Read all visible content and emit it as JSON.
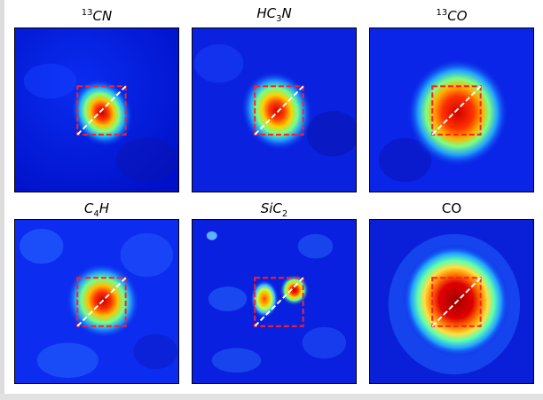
{
  "figure": {
    "panels": [
      {
        "id": "13cn",
        "title_sup": "13",
        "title_main": "CN",
        "title_sub": "",
        "title_italic": true,
        "blobs": [
          {
            "intensity": "peak",
            "shape": "compact"
          }
        ]
      },
      {
        "id": "hc3n",
        "title_sup": "",
        "title_main": "HC",
        "title_sub": "3",
        "title_tail": "N",
        "title_italic": true,
        "blobs": [
          {
            "intensity": "peak",
            "shape": "compact"
          }
        ]
      },
      {
        "id": "13co",
        "title_sup": "13",
        "title_main": "CO",
        "title_sub": "",
        "title_italic": true,
        "blobs": [
          {
            "intensity": "peak",
            "shape": "extended"
          }
        ]
      },
      {
        "id": "c4h",
        "title_sup": "",
        "title_main": "C",
        "title_sub": "4",
        "title_tail": "H",
        "title_italic": true,
        "blobs": [
          {
            "intensity": "peak",
            "shape": "compact"
          }
        ]
      },
      {
        "id": "sic2",
        "title_sup": "",
        "title_main": "SiC",
        "title_sub": "2",
        "title_italic": true,
        "blobs": [
          {
            "intensity": "peak",
            "shape": "double"
          }
        ]
      },
      {
        "id": "co",
        "title_sup": "",
        "title_main": "CO",
        "title_sub": "",
        "title_italic": false,
        "blobs": [
          {
            "intensity": "peak",
            "shape": "large"
          }
        ]
      }
    ],
    "colors": {
      "background_low": "#0010c8",
      "background_mid": "#1e50ff",
      "box": "#ff2020",
      "diagonal": "#ffffff"
    }
  }
}
